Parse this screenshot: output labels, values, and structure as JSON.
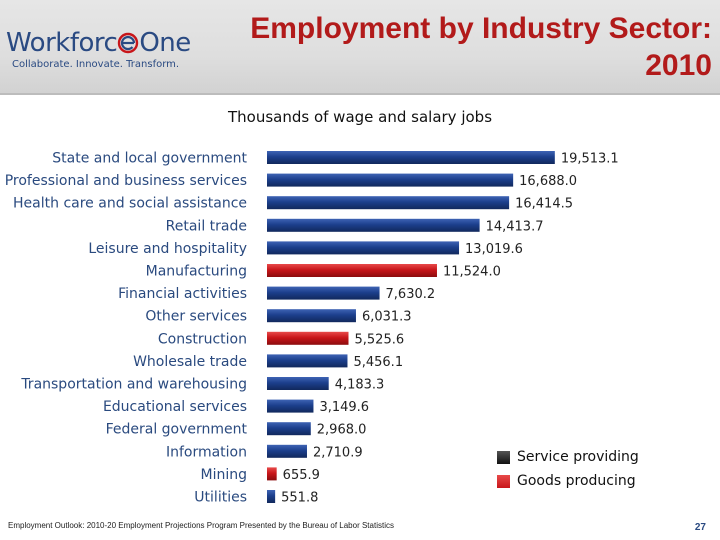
{
  "header": {
    "logo_text_a": "Workforc",
    "logo_text_b": "One",
    "logo_tagline": "Collaborate.  Innovate.  Transform.",
    "title_line1": "Employment by Industry Sector:",
    "title_line2": "2010",
    "accent_color": "#b21a1a",
    "brand_color": "#2a4a82"
  },
  "chart_data": {
    "type": "bar",
    "orientation": "horizontal",
    "title": "Thousands of wage and salary jobs",
    "categories": [
      "State and local government",
      "Professional and business services",
      "Health care and social assistance",
      "Retail trade",
      "Leisure and hospitality",
      "Manufacturing",
      "Financial activities",
      "Other services",
      "Construction",
      "Wholesale trade",
      "Transportation and warehousing",
      "Educational services",
      "Federal government",
      "Information",
      "Mining",
      "Utilities"
    ],
    "values": [
      19513.1,
      16688.0,
      16414.5,
      14413.7,
      13019.6,
      11524.0,
      7630.2,
      6031.3,
      5525.6,
      5456.1,
      4183.3,
      3149.6,
      2968.0,
      2710.9,
      655.9,
      551.8
    ],
    "value_labels": [
      "19,513.1",
      "16,688.0",
      "16,414.5",
      "14,413.7",
      "13,019.6",
      "11,524.0",
      "7,630.2",
      "6,031.3",
      "5,525.6",
      "5,456.1",
      "4,183.3",
      "3,149.6",
      "2,968.0",
      "2,710.9",
      "655.9",
      "551.8"
    ],
    "groups": [
      "Service providing",
      "Service providing",
      "Service providing",
      "Service providing",
      "Service providing",
      "Goods producing",
      "Service providing",
      "Service providing",
      "Goods producing",
      "Service providing",
      "Service providing",
      "Service providing",
      "Service providing",
      "Service providing",
      "Goods producing",
      "Service providing"
    ],
    "xlim": [
      0,
      20000
    ],
    "grid": false,
    "legend_position": "bottom-right",
    "legend": [
      {
        "name": "Service providing",
        "color": "#1c3f8c"
      },
      {
        "name": "Goods producing",
        "color": "#c8161a"
      }
    ]
  },
  "footer": {
    "source": "Employment Outlook: 2010-20 Employment Projections Program Presented by the Bureau of Labor Statistics",
    "page": "27"
  }
}
